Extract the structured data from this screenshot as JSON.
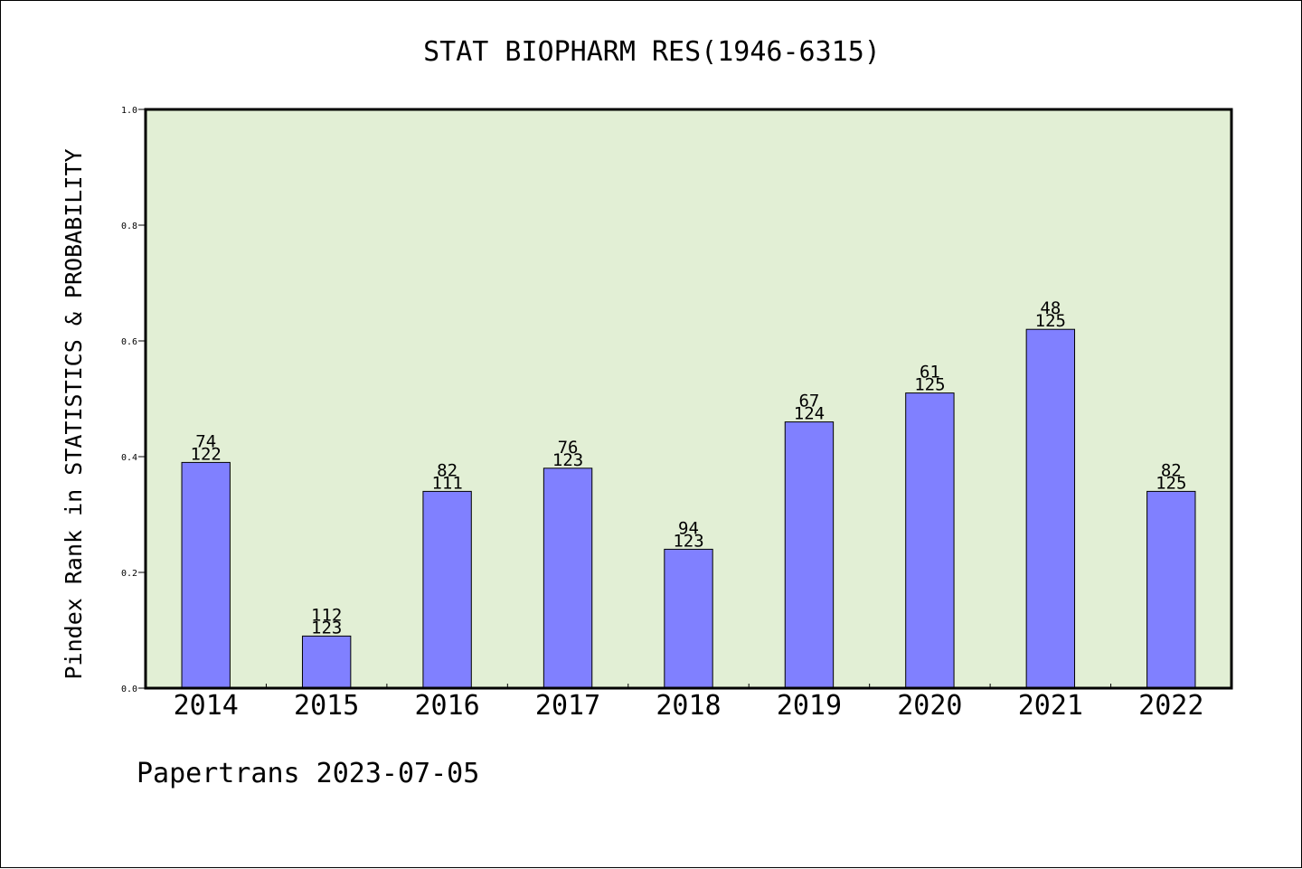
{
  "chart_data": {
    "type": "bar",
    "title": "STAT BIOPHARM RES(1946-6315)",
    "ylabel": "Pindex Rank in STATISTICS & PROBABILITY",
    "xlabel": "",
    "categories": [
      "2014",
      "2015",
      "2016",
      "2017",
      "2018",
      "2019",
      "2020",
      "2021",
      "2022"
    ],
    "values": [
      0.39,
      0.09,
      0.34,
      0.38,
      0.24,
      0.46,
      0.51,
      0.62,
      0.34
    ],
    "ranks": [
      "74",
      "112",
      "82",
      "76",
      "94",
      "67",
      "61",
      "48",
      "82"
    ],
    "totals": [
      "122",
      "123",
      "111",
      "123",
      "123",
      "124",
      "125",
      "125",
      "125"
    ],
    "ylim": [
      0.0,
      1.0
    ],
    "yticks": [
      "0.0",
      "0.2",
      "0.4",
      "0.6",
      "0.8",
      "1.0"
    ],
    "grid": false,
    "plot_background": "#e2efd5",
    "bar_color": "#8080ff"
  },
  "footer": "Papertrans 2023-07-05"
}
